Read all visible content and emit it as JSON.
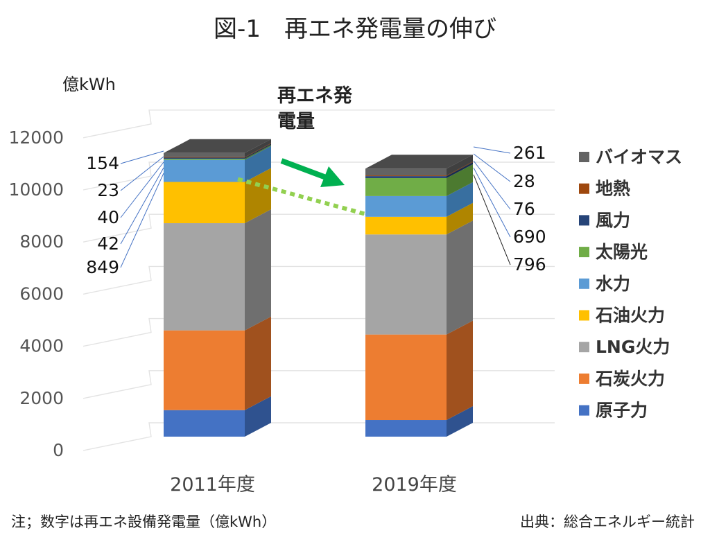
{
  "title": "図-1　再エネ発電量の伸び",
  "chart_data": {
    "type": "bar",
    "stacked": true,
    "style": "3d-column",
    "categories": [
      "2011年度",
      "2019年度"
    ],
    "ylabel": "億kWh",
    "ylim": [
      0,
      12000
    ],
    "yticks": [
      "0",
      "2000",
      "4000",
      "6000",
      "8000",
      "10000",
      "12000"
    ],
    "legend_position": "right",
    "series": [
      {
        "name": "原子力",
        "values": [
          1018,
          638
        ],
        "color": "#4472C4",
        "side": "#2F528F"
      },
      {
        "name": "石炭火力",
        "values": [
          3060,
          3281
        ],
        "color": "#ED7D31",
        "side": "#A0511E"
      },
      {
        "name": "LNG火力",
        "values": [
          4113,
          3840
        ],
        "color": "#A5A5A5",
        "side": "#6F6F6F"
      },
      {
        "name": "石油火力",
        "values": [
          1583,
          676
        ],
        "color": "#FFC000",
        "side": "#AF8500"
      },
      {
        "name": "水力",
        "values": [
          849,
          796
        ],
        "color": "#5B9BD5",
        "side": "#386FA0"
      },
      {
        "name": "太陽光",
        "values": [
          42,
          690
        ],
        "color": "#70AD47",
        "side": "#4C7A30"
      },
      {
        "name": "風力",
        "values": [
          40,
          76
        ],
        "color": "#264478",
        "side": "#172B4E"
      },
      {
        "name": "地熱",
        "values": [
          23,
          28
        ],
        "color": "#9E480E",
        "side": "#6A2F08"
      },
      {
        "name": "バイオマス",
        "values": [
          154,
          261
        ],
        "color": "#636363",
        "side": "#404040"
      }
    ],
    "data_labels": {
      "2011年度": [
        "154",
        "23",
        "40",
        "42",
        "849"
      ],
      "2019年度": [
        "261",
        "28",
        "76",
        "690",
        "796"
      ]
    },
    "annotation": {
      "line1": "再エネ発",
      "line2": "電量"
    }
  },
  "notes": {
    "left": "注；数字は再エネ設備発電量（億kWh）",
    "right": "出典：総合エネルギー統計"
  }
}
